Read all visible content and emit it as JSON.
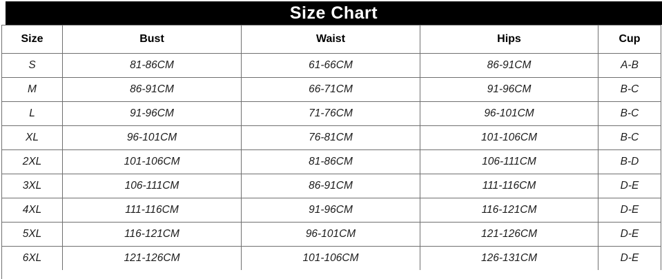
{
  "title": "Size Chart",
  "table": {
    "columns": [
      "Size",
      "Bust",
      "Waist",
      "Hips",
      "Cup"
    ],
    "rows": [
      [
        "S",
        "81-86CM",
        "61-66CM",
        "86-91CM",
        "A-B"
      ],
      [
        "M",
        "86-91CM",
        "66-71CM",
        "91-96CM",
        "B-C"
      ],
      [
        "L",
        "91-96CM",
        "71-76CM",
        "96-101CM",
        "B-C"
      ],
      [
        "XL",
        "96-101CM",
        "76-81CM",
        "101-106CM",
        "B-C"
      ],
      [
        "2XL",
        "101-106CM",
        "81-86CM",
        "106-111CM",
        "B-D"
      ],
      [
        "3XL",
        "106-111CM",
        "86-91CM",
        "111-116CM",
        "D-E"
      ],
      [
        "4XL",
        "111-116CM",
        "91-96CM",
        "116-121CM",
        "D-E"
      ],
      [
        "5XL",
        "116-121CM",
        "96-101CM",
        "121-126CM",
        "D-E"
      ],
      [
        "6XL",
        "121-126CM",
        "101-106CM",
        "126-131CM",
        "D-E"
      ]
    ]
  },
  "colors": {
    "title_bg": "#000000",
    "title_text": "#ffffff",
    "grid_border": "#6f6f6f",
    "cell_bg": "#ffffff",
    "cell_text": "#1c1c1c"
  },
  "chart_data": {
    "type": "table",
    "title": "Size Chart",
    "columns": [
      "Size",
      "Bust",
      "Waist",
      "Hips",
      "Cup"
    ],
    "rows": [
      [
        "S",
        "81-86CM",
        "61-66CM",
        "86-91CM",
        "A-B"
      ],
      [
        "M",
        "86-91CM",
        "66-71CM",
        "91-96CM",
        "B-C"
      ],
      [
        "L",
        "91-96CM",
        "71-76CM",
        "96-101CM",
        "B-C"
      ],
      [
        "XL",
        "96-101CM",
        "76-81CM",
        "101-106CM",
        "B-C"
      ],
      [
        "2XL",
        "101-106CM",
        "81-86CM",
        "106-111CM",
        "B-D"
      ],
      [
        "3XL",
        "106-111CM",
        "86-91CM",
        "111-116CM",
        "D-E"
      ],
      [
        "4XL",
        "111-116CM",
        "91-96CM",
        "116-121CM",
        "D-E"
      ],
      [
        "5XL",
        "116-121CM",
        "96-101CM",
        "121-126CM",
        "D-E"
      ],
      [
        "6XL",
        "121-126CM",
        "101-106CM",
        "126-131CM",
        "D-E"
      ]
    ]
  }
}
